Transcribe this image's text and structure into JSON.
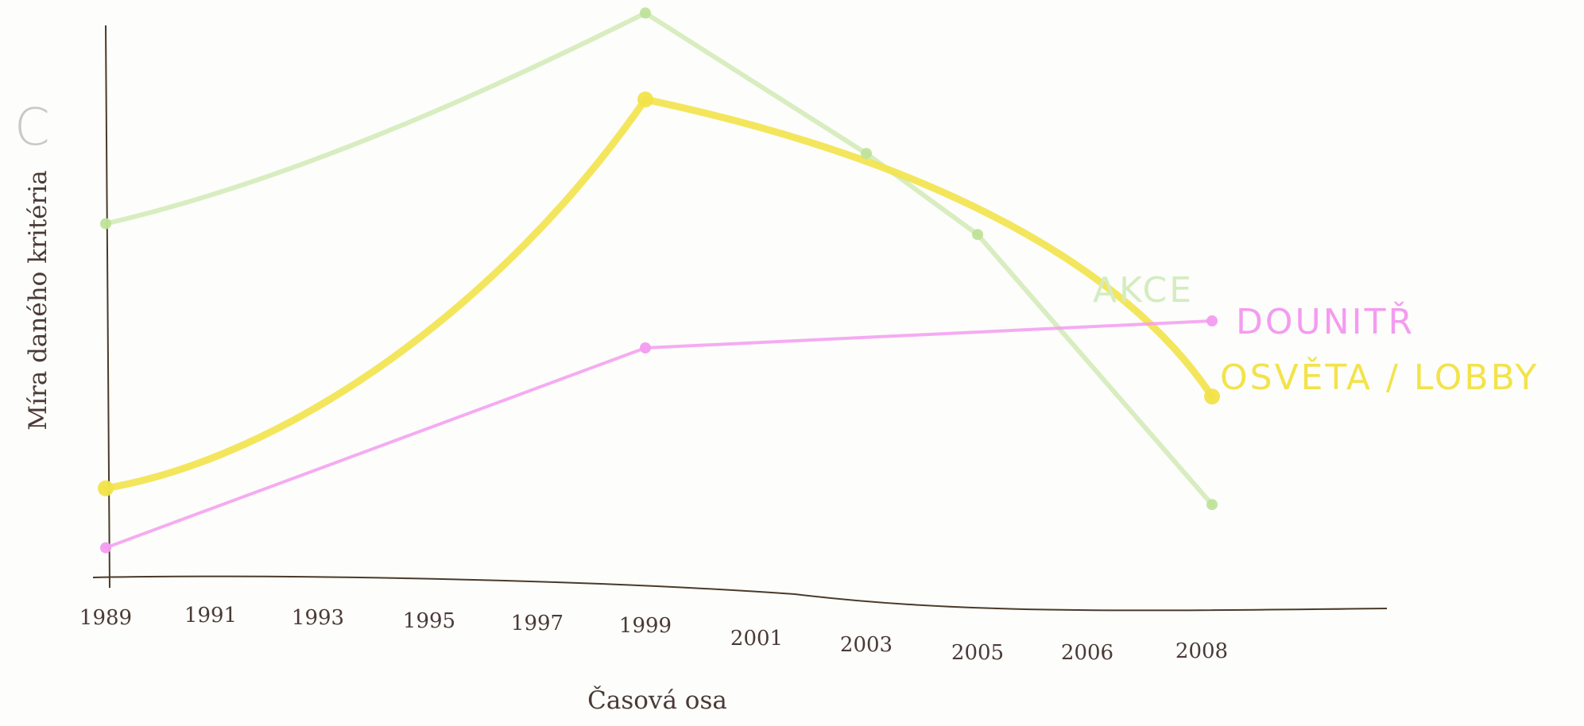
{
  "chart_data": {
    "type": "line",
    "title": "",
    "corner_mark": "C",
    "xlabel": "Časová osa",
    "ylabel": "Míra daného kritéria",
    "x_ticks": [
      "1989",
      "1991",
      "1993",
      "1995",
      "1997",
      "1999",
      "2001",
      "2003",
      "2005",
      "2006",
      "2008"
    ],
    "y_ticks": [],
    "grid": false,
    "ylim": [
      0,
      100
    ],
    "series": [
      {
        "name": "AKCE",
        "color": "#bfe39a",
        "values": {
          "1989": 63,
          "1999": 102,
          "2003": 76,
          "2005": 61,
          "2008": 11
        }
      },
      {
        "name": "OSVĚTA / LOBBY",
        "color": "#f2e34a",
        "values": {
          "1989": 14,
          "1999": 86,
          "2008": 31
        }
      },
      {
        "name": "DOUNITŘ",
        "color": "#f39cf0",
        "values": {
          "1989": 3,
          "1999": 40,
          "2008": 45
        }
      }
    ]
  }
}
